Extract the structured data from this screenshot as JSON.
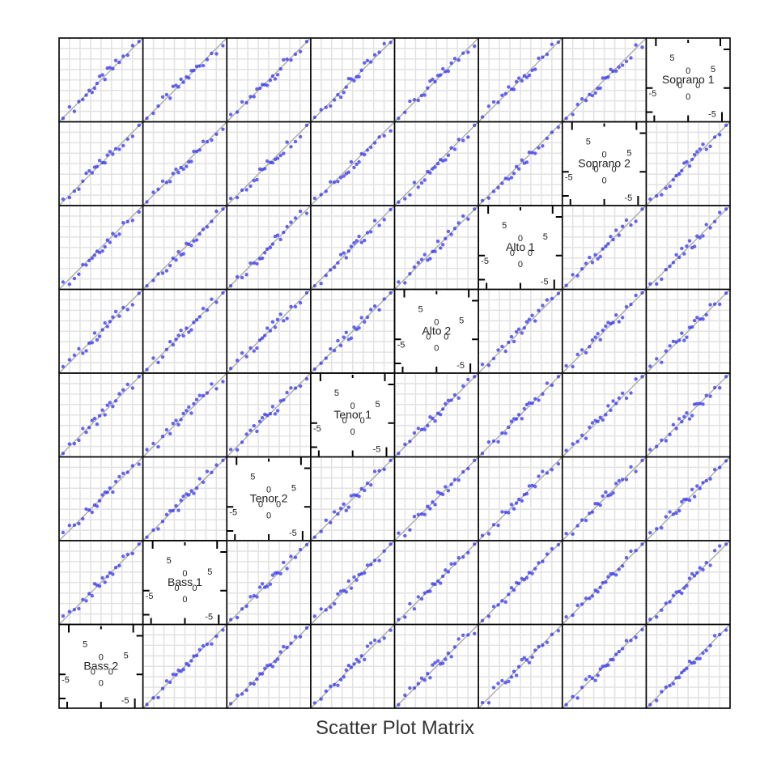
{
  "chart_data": {
    "type": "scatter",
    "kind": "scatter-plot-matrix",
    "xlabel": "Scatter Plot Matrix",
    "variables": [
      "Bass 2",
      "Bass 1",
      "Tenor 2",
      "Tenor 1",
      "Alto 2",
      "Alto 1",
      "Soprano 2",
      "Soprano 1"
    ],
    "layout": "variable k on the diagonal, counted from the bottom-left panel",
    "axis_ticks": [
      -5,
      0,
      5
    ],
    "axis_range": [
      -8.5,
      8.5
    ],
    "grid": true,
    "reference_line": "y = x",
    "point_color": "#3333ee",
    "line_color": "#aaaaaa",
    "quantiles": [
      [
        -7.7,
        -6.4,
        -5.4,
        -4.5,
        -3.7,
        -3.0,
        -2.4,
        -1.8,
        -1.3,
        -0.8,
        -0.3,
        0.3,
        0.8,
        1.3,
        1.8,
        2.4,
        3.0,
        3.7,
        4.5,
        5.4,
        6.4,
        7.7
      ],
      [
        -7.7,
        -6.4,
        -5.4,
        -4.5,
        -3.7,
        -3.0,
        -2.4,
        -1.8,
        -1.3,
        -0.8,
        -0.3,
        0.3,
        0.8,
        1.3,
        1.8,
        2.4,
        3.0,
        3.7,
        4.5,
        5.4,
        6.4,
        7.7
      ]
    ]
  }
}
